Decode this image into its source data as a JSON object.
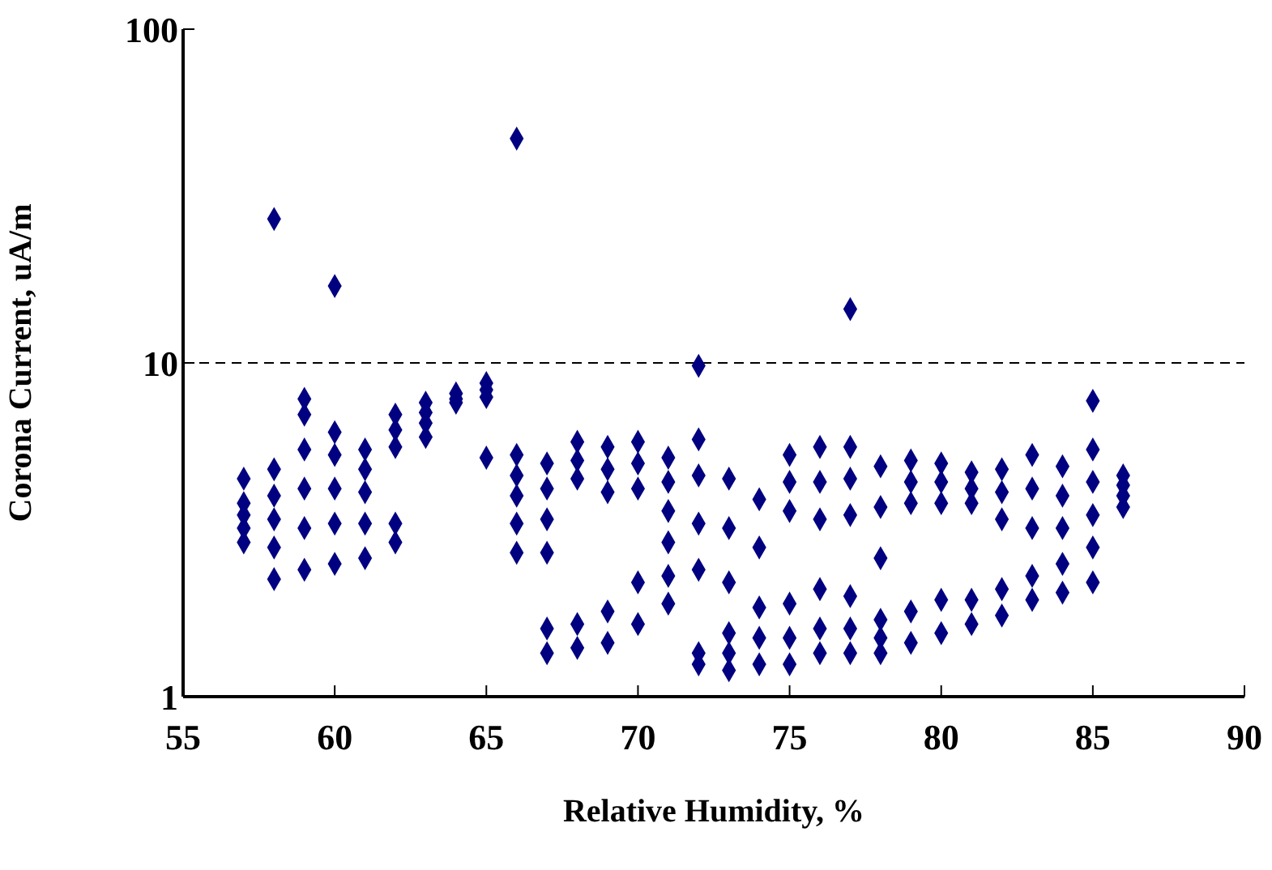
{
  "chart_data": {
    "type": "scatter",
    "xlabel": "Relative Humidity, %",
    "ylabel": "Corona Current, uA/m",
    "xlim": [
      55,
      90
    ],
    "xticks": [
      55,
      60,
      65,
      70,
      75,
      80,
      85,
      90
    ],
    "ylim": [
      1,
      100
    ],
    "yticks": [
      1,
      10,
      100
    ],
    "log": "y",
    "grid": false,
    "legend": false,
    "marker": "diamond",
    "ref_lines": [
      {
        "axis": "y",
        "value": 10,
        "line_style": "dashed",
        "color": "#000000"
      }
    ],
    "series": [
      {
        "color": "#000080",
        "x": [
          57,
          57,
          57,
          57,
          57,
          58,
          58,
          58,
          58,
          58,
          58,
          59,
          59,
          59,
          59,
          59,
          59,
          60,
          60,
          60,
          60,
          60,
          60,
          61,
          61,
          61,
          61,
          61,
          62,
          62,
          62,
          62,
          62,
          63,
          63,
          63,
          63,
          64,
          64,
          64,
          65,
          65,
          65,
          65,
          66,
          66,
          66,
          66,
          66,
          66,
          67,
          67,
          67,
          67,
          67,
          67,
          68,
          68,
          68,
          68,
          68,
          69,
          69,
          69,
          69,
          69,
          70,
          70,
          70,
          70,
          70,
          71,
          71,
          71,
          71,
          71,
          71,
          72,
          72,
          72,
          72,
          72,
          72,
          72,
          73,
          73,
          73,
          73,
          73,
          73,
          74,
          74,
          74,
          74,
          74,
          75,
          75,
          75,
          75,
          75,
          75,
          76,
          76,
          76,
          76,
          76,
          76,
          77,
          77,
          77,
          77,
          77,
          77,
          77,
          78,
          78,
          78,
          78,
          78,
          78,
          79,
          79,
          79,
          79,
          79,
          80,
          80,
          80,
          80,
          80,
          81,
          81,
          81,
          81,
          81,
          82,
          82,
          82,
          82,
          82,
          83,
          83,
          83,
          83,
          83,
          84,
          84,
          84,
          84,
          84,
          85,
          85,
          85,
          85,
          85,
          85,
          86,
          86,
          86,
          86
        ],
        "values": [
          2.9,
          3.2,
          3.5,
          3.8,
          4.5,
          2.25,
          2.8,
          3.4,
          4.0,
          4.8,
          27,
          2.4,
          3.2,
          4.2,
          5.5,
          7.0,
          7.8,
          2.5,
          3.3,
          4.2,
          5.3,
          6.2,
          17,
          2.6,
          3.3,
          4.1,
          4.8,
          5.5,
          2.9,
          3.3,
          5.6,
          6.3,
          7.0,
          6.0,
          6.6,
          7.1,
          7.6,
          7.6,
          7.8,
          8.1,
          5.2,
          7.9,
          8.3,
          8.7,
          2.7,
          3.3,
          4.0,
          4.6,
          5.3,
          47,
          1.35,
          1.6,
          2.7,
          3.4,
          4.2,
          5.0,
          1.4,
          1.65,
          4.5,
          5.1,
          5.8,
          1.45,
          1.8,
          4.1,
          4.8,
          5.6,
          1.65,
          2.2,
          4.2,
          5.0,
          5.8,
          1.9,
          2.3,
          2.9,
          3.6,
          4.4,
          5.2,
          1.25,
          1.35,
          2.4,
          3.3,
          4.6,
          5.9,
          9.8,
          1.2,
          1.35,
          1.55,
          2.2,
          3.2,
          4.5,
          1.25,
          1.5,
          1.85,
          2.8,
          3.9,
          1.25,
          1.5,
          1.9,
          3.6,
          4.4,
          5.3,
          1.35,
          1.6,
          2.1,
          3.4,
          4.4,
          5.6,
          1.35,
          1.6,
          2.0,
          3.5,
          4.5,
          5.6,
          14.5,
          1.35,
          1.5,
          1.7,
          2.6,
          3.7,
          4.9,
          1.45,
          1.8,
          3.8,
          4.4,
          5.1,
          1.55,
          1.95,
          3.8,
          4.4,
          5.0,
          1.65,
          1.95,
          3.8,
          4.2,
          4.7,
          1.75,
          2.1,
          3.4,
          4.1,
          4.8,
          1.95,
          2.3,
          3.2,
          4.2,
          5.3,
          2.05,
          2.5,
          3.2,
          4.0,
          4.9,
          2.2,
          2.8,
          3.5,
          4.4,
          5.5,
          7.7,
          3.7,
          4.0,
          4.3,
          4.6
        ]
      }
    ]
  }
}
